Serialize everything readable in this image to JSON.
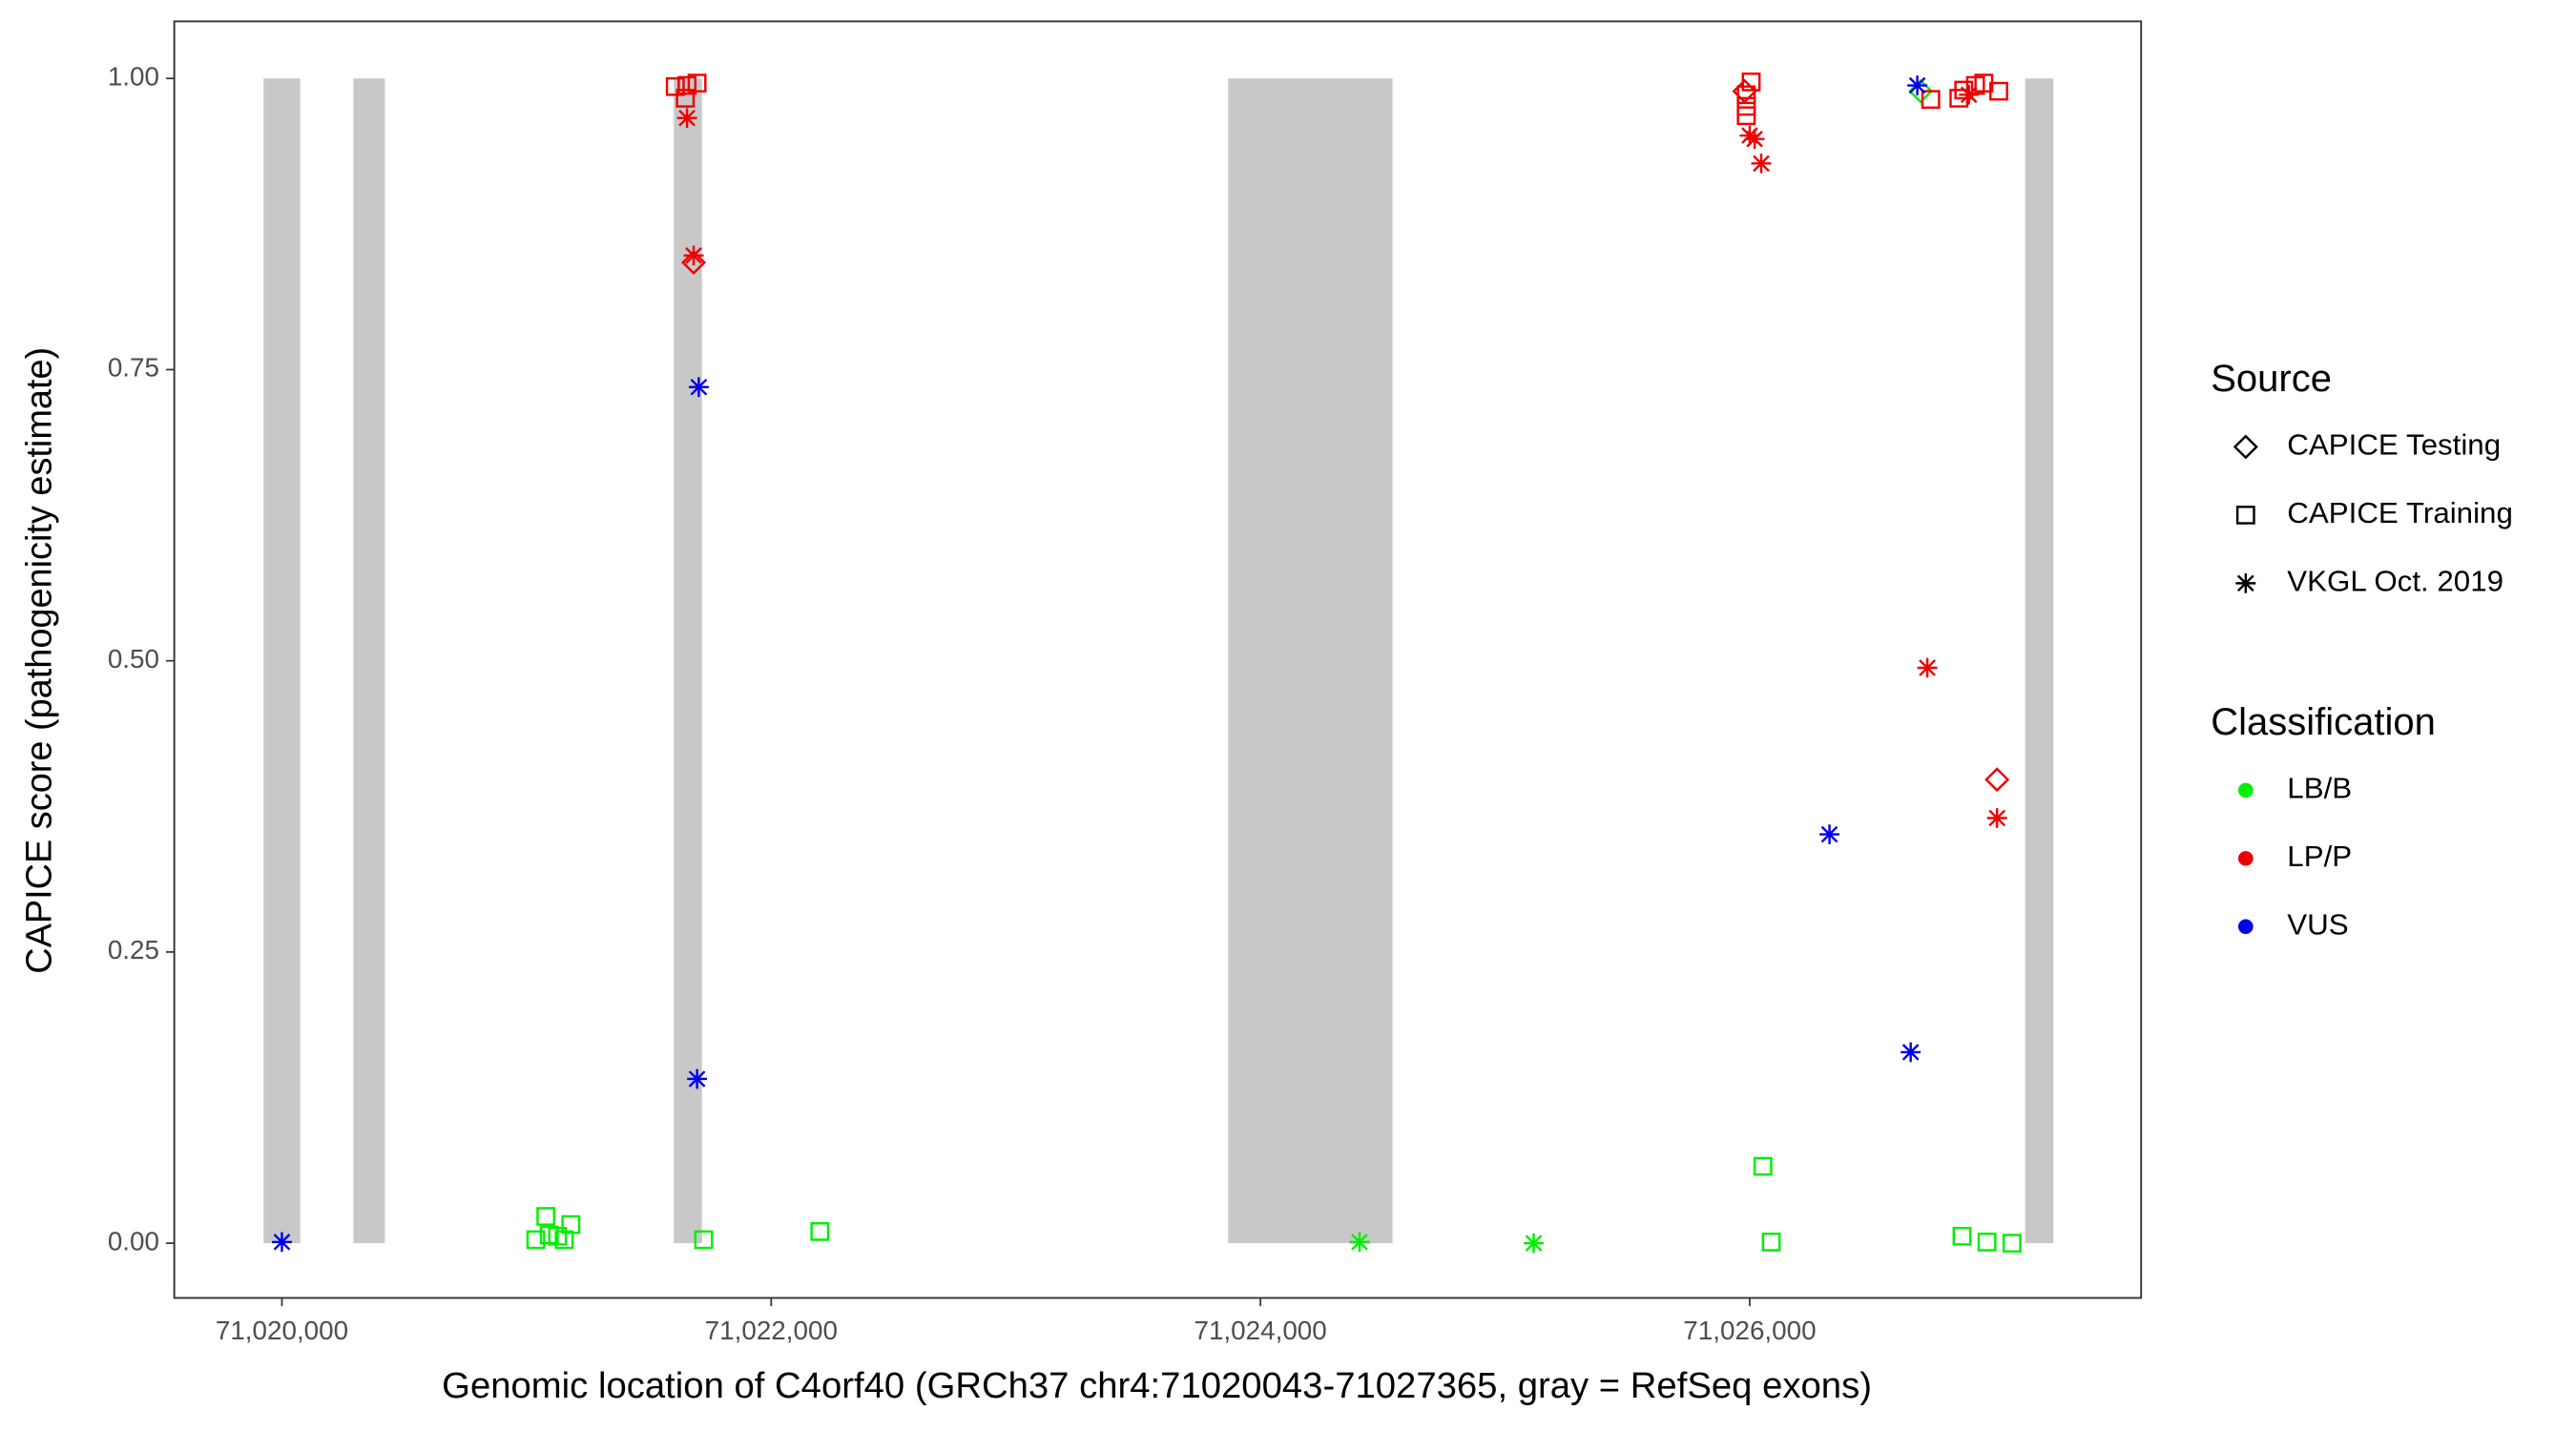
{
  "chart_data": {
    "type": "scatter",
    "x_label": "Genomic location of C4orf40 (GRCh37 chr4:71020043-71027365, gray = RefSeq exons)",
    "y_label": "CAPICE score (pathogenicity estimate)",
    "xlim": [
      71019560,
      71027600
    ],
    "ylim": [
      -0.047,
      1.049
    ],
    "xticks": [
      {
        "value": 71020000,
        "label": "71,020,000"
      },
      {
        "value": 71022000,
        "label": "71,022,000"
      },
      {
        "value": 71024000,
        "label": "71,024,000"
      },
      {
        "value": 71026000,
        "label": "71,026,000"
      }
    ],
    "yticks": [
      {
        "value": 0,
        "label": "0.00"
      },
      {
        "value": 0.25,
        "label": "0.25"
      },
      {
        "value": 0.5,
        "label": "0.50"
      },
      {
        "value": 0.75,
        "label": "0.75"
      },
      {
        "value": 1,
        "label": "1.00"
      }
    ],
    "exon_color": "#c8c8c8",
    "exons": {
      "start": [
        71019925,
        71020292,
        71021602,
        71023868,
        71027126
      ],
      "end": [
        71020075,
        71020421,
        71021717,
        71024540,
        71027241
      ]
    },
    "legend_source": {
      "title": "Source",
      "items": [
        {
          "label": "CAPICE Testing",
          "shape": "diamond"
        },
        {
          "label": "CAPICE Training",
          "shape": "square"
        },
        {
          "label": "VKGL Oct. 2019",
          "shape": "star"
        }
      ]
    },
    "legend_classification": {
      "title": "Classification",
      "items": [
        {
          "label": "LB/B",
          "color": "#00ee00"
        },
        {
          "label": "LP/P",
          "color": "#ee0000"
        },
        {
          "label": "VUS",
          "color": "#0000ee"
        }
      ]
    },
    "series": [
      {
        "name": "LB/B",
        "color": "#00ee00",
        "x": [
          71021038,
          71021079,
          71021093,
          71021127,
          71021154,
          71021181,
          71021724,
          71022199,
          71024405,
          71025117,
          71026054,
          71026088,
          71026699,
          71026868,
          71026970,
          71027072
        ],
        "values": [
          0.003,
          0.023,
          0.007,
          0.006,
          0.003,
          0.016,
          0.003,
          0.01,
          0.001,
          0.0,
          0.066,
          0.001,
          0.989,
          0.006,
          0.001,
          0.0
        ],
        "shapes": [
          "square",
          "square",
          "square",
          "square",
          "square",
          "square",
          "square",
          "square",
          "star",
          "star",
          "square",
          "square",
          "diamond",
          "square",
          "square",
          "square"
        ]
      },
      {
        "name": "LP/P",
        "color": "#ee0000",
        "x": [
          71021608,
          71021649,
          71021656,
          71021697,
          71021656,
          71021683,
          71021683,
          71026006,
          71025986,
          71025986,
          71025986,
          71025979,
          71026000,
          71026020,
          71026047,
          71026740,
          71026726,
          71026855,
          71026875,
          71026923,
          71026957,
          71027018,
          71026896,
          71027011,
          71027011
        ],
        "values": [
          0.993,
          0.983,
          0.994,
          0.996,
          0.966,
          0.848,
          0.842,
          0.997,
          0.986,
          0.976,
          0.968,
          0.989,
          0.951,
          0.948,
          0.927,
          0.982,
          0.494,
          0.983,
          0.99,
          0.994,
          0.996,
          0.989,
          0.986,
          0.398,
          0.365
        ],
        "shapes": [
          "square",
          "square",
          "square",
          "square",
          "star",
          "star",
          "diamond",
          "square",
          "square",
          "square",
          "square",
          "diamond",
          "star",
          "star",
          "star",
          "square",
          "star",
          "square",
          "square",
          "square",
          "square",
          "square",
          "star",
          "diamond",
          "star"
        ]
      },
      {
        "name": "VUS",
        "color": "#0000ee",
        "x": [
          71020000,
          71021704,
          71021697,
          71026326,
          71026685,
          71026658
        ],
        "values": [
          0.001,
          0.735,
          0.141,
          0.351,
          0.994,
          0.164
        ],
        "shapes": [
          "star",
          "star",
          "star",
          "star",
          "star",
          "star"
        ]
      }
    ]
  }
}
